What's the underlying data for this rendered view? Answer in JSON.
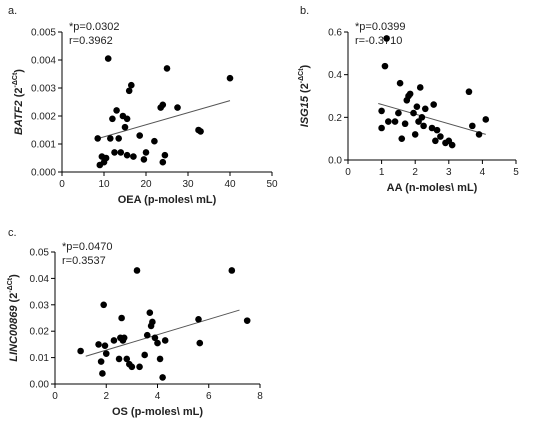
{
  "chart_data": [
    {
      "type": "scatter",
      "panel_label": "a.",
      "xlabel": "OEA (p-moles\\ mL)",
      "ylabel_gene": "BATF2",
      "ylabel_unit_base": " (2",
      "ylabel_unit_sup": "-ΔCt",
      "ylabel_unit_close": ")",
      "stat_p": "*p=0.0302",
      "stat_r": "r=0.3962",
      "xlim": [
        0,
        50
      ],
      "ylim": [
        0,
        0.005
      ],
      "xticks": [
        "0",
        "10",
        "20",
        "30",
        "40",
        "50"
      ],
      "yticks": [
        "0.000",
        "0.001",
        "0.002",
        "0.003",
        "0.004",
        "0.005"
      ],
      "points": [
        [
          8.5,
          0.0012
        ],
        [
          9.0,
          0.00025
        ],
        [
          9.5,
          0.00055
        ],
        [
          10.0,
          0.00035
        ],
        [
          10.5,
          0.0005
        ],
        [
          11.0,
          0.00405
        ],
        [
          11.5,
          0.0012
        ],
        [
          12.0,
          0.0019
        ],
        [
          12.5,
          0.0007
        ],
        [
          13.0,
          0.0022
        ],
        [
          13.5,
          0.0012
        ],
        [
          14.0,
          0.0007
        ],
        [
          14.5,
          0.002
        ],
        [
          15.0,
          0.0016
        ],
        [
          15.5,
          0.0006
        ],
        [
          15.5,
          0.0019
        ],
        [
          16.0,
          0.0029
        ],
        [
          16.5,
          0.0031
        ],
        [
          17.0,
          0.00055
        ],
        [
          18.5,
          0.0013
        ],
        [
          20.0,
          0.0007
        ],
        [
          22.0,
          0.0011
        ],
        [
          23.5,
          0.0023
        ],
        [
          24.0,
          0.0024
        ],
        [
          24.5,
          0.0006
        ],
        [
          25.0,
          0.0037
        ],
        [
          27.5,
          0.0023
        ],
        [
          32.5,
          0.0015
        ],
        [
          33.0,
          0.00145
        ],
        [
          40.0,
          0.00335
        ],
        [
          24.0,
          0.00035
        ],
        [
          19.5,
          0.00045
        ]
      ],
      "trend": [
        [
          8,
          0.00117
        ],
        [
          40,
          0.00255
        ]
      ]
    },
    {
      "type": "scatter",
      "panel_label": "b.",
      "xlabel": "AA (n-moles\\ mL)",
      "ylabel_gene": "ISG15",
      "ylabel_unit_base": " (2",
      "ylabel_unit_sup": "-ΔCt",
      "ylabel_unit_close": ")",
      "stat_p": "*p=0.0399",
      "stat_r": "r=-0.3710",
      "xlim": [
        0,
        5
      ],
      "ylim": [
        0,
        0.6
      ],
      "xticks": [
        "0",
        "1",
        "2",
        "3",
        "4",
        "5"
      ],
      "yticks": [
        "0.0",
        "0.2",
        "0.4",
        "0.6"
      ],
      "points": [
        [
          1.0,
          0.15
        ],
        [
          1.0,
          0.23
        ],
        [
          1.1,
          0.44
        ],
        [
          1.15,
          0.57
        ],
        [
          1.2,
          0.18
        ],
        [
          1.4,
          0.18
        ],
        [
          1.5,
          0.22
        ],
        [
          1.55,
          0.36
        ],
        [
          1.6,
          0.1
        ],
        [
          1.7,
          0.17
        ],
        [
          1.75,
          0.28
        ],
        [
          1.8,
          0.3
        ],
        [
          1.85,
          0.31
        ],
        [
          1.95,
          0.22
        ],
        [
          2.0,
          0.12
        ],
        [
          2.05,
          0.25
        ],
        [
          2.1,
          0.18
        ],
        [
          2.15,
          0.34
        ],
        [
          2.2,
          0.2
        ],
        [
          2.25,
          0.16
        ],
        [
          2.3,
          0.24
        ],
        [
          2.5,
          0.15
        ],
        [
          2.55,
          0.26
        ],
        [
          2.6,
          0.09
        ],
        [
          2.75,
          0.11
        ],
        [
          2.9,
          0.08
        ],
        [
          3.1,
          0.07
        ],
        [
          3.6,
          0.32
        ],
        [
          3.7,
          0.16
        ],
        [
          3.9,
          0.12
        ],
        [
          4.1,
          0.19
        ],
        [
          2.65,
          0.14
        ],
        [
          3.0,
          0.09
        ]
      ],
      "trend": [
        [
          0.9,
          0.265
        ],
        [
          4.1,
          0.12
        ]
      ]
    },
    {
      "type": "scatter",
      "panel_label": "c.",
      "xlabel": "OS (p-moles\\ mL)",
      "ylabel_gene": "LINC00869",
      "ylabel_unit_base": " (2",
      "ylabel_unit_sup": "-ΔCt",
      "ylabel_unit_close": ")",
      "stat_p": "*p=0.0470",
      "stat_r": "r=0.3537",
      "xlim": [
        0,
        8
      ],
      "ylim": [
        0,
        0.05
      ],
      "xticks": [
        "0",
        "2",
        "4",
        "6",
        "8"
      ],
      "yticks": [
        "0.00",
        "0.01",
        "0.02",
        "0.03",
        "0.04",
        "0.05"
      ],
      "points": [
        [
          1.0,
          0.0125
        ],
        [
          1.7,
          0.015
        ],
        [
          1.8,
          0.0085
        ],
        [
          1.85,
          0.004
        ],
        [
          1.9,
          0.03
        ],
        [
          1.95,
          0.0145
        ],
        [
          2.0,
          0.0115
        ],
        [
          2.3,
          0.0165
        ],
        [
          2.5,
          0.0095
        ],
        [
          2.55,
          0.0175
        ],
        [
          2.6,
          0.025
        ],
        [
          2.7,
          0.0175
        ],
        [
          2.8,
          0.0095
        ],
        [
          2.9,
          0.0075
        ],
        [
          3.0,
          0.0065
        ],
        [
          3.2,
          0.043
        ],
        [
          3.3,
          0.0065
        ],
        [
          3.5,
          0.011
        ],
        [
          3.6,
          0.0185
        ],
        [
          3.7,
          0.027
        ],
        [
          3.75,
          0.022
        ],
        [
          3.8,
          0.0235
        ],
        [
          3.9,
          0.0175
        ],
        [
          4.0,
          0.0155
        ],
        [
          4.1,
          0.0095
        ],
        [
          4.2,
          0.0025
        ],
        [
          4.3,
          0.0165
        ],
        [
          5.6,
          0.0245
        ],
        [
          5.65,
          0.0155
        ],
        [
          6.9,
          0.043
        ],
        [
          7.5,
          0.024
        ],
        [
          2.65,
          0.0165
        ]
      ],
      "trend": [
        [
          1.2,
          0.0105
        ],
        [
          7.2,
          0.028
        ]
      ]
    }
  ]
}
